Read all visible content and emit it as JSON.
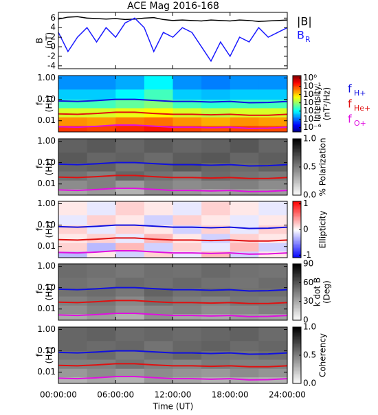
{
  "title": "ACE Mag 2016-168",
  "xaxis": {
    "xlim": [
      0,
      24
    ],
    "xticks": [
      {
        "value": 0,
        "label": "00:00:00"
      },
      {
        "value": 6,
        "label": "06:00:00"
      },
      {
        "value": 12,
        "label": "12:00:00"
      },
      {
        "value": 18,
        "label": "18:00:00"
      },
      {
        "value": 24,
        "label": "24:00:00"
      }
    ],
    "xlabel": "Time (UT)"
  },
  "gyrofrequencies": {
    "x": [
      0,
      2,
      4,
      6,
      8,
      10,
      12,
      14,
      16,
      18,
      20,
      22,
      24
    ],
    "series": [
      {
        "symbol": "f",
        "subscript": "H+",
        "color": "#1010e0",
        "values": [
          0.085,
          0.08,
          0.088,
          0.1,
          0.1,
          0.09,
          0.08,
          0.08,
          0.075,
          0.08,
          0.07,
          0.072,
          0.08
        ]
      },
      {
        "symbol": "f",
        "subscript": "He+",
        "color": "#e01010",
        "values": [
          0.021,
          0.02,
          0.022,
          0.025,
          0.025,
          0.022,
          0.02,
          0.02,
          0.019,
          0.02,
          0.018,
          0.018,
          0.02
        ]
      },
      {
        "symbol": "f",
        "subscript": "O+",
        "color": "#e010e0",
        "values": [
          0.0053,
          0.005,
          0.0055,
          0.0063,
          0.0063,
          0.0056,
          0.005,
          0.005,
          0.0047,
          0.005,
          0.0044,
          0.0045,
          0.005
        ]
      }
    ]
  },
  "chart_data": [
    {
      "type": "line",
      "ylabel": [
        "B",
        "(nT)"
      ],
      "ylim": [
        -4.6,
        7.2
      ],
      "yticks": [
        -4,
        -2,
        0,
        2,
        4,
        6
      ],
      "x": [
        0,
        1,
        2,
        3,
        4,
        5,
        6,
        7,
        8,
        9,
        10,
        11,
        12,
        13,
        14,
        15,
        16,
        17,
        18,
        19,
        20,
        21,
        22,
        23,
        24
      ],
      "series": [
        {
          "name": "|B|",
          "color": "#000000",
          "values": [
            5.8,
            6.2,
            6.3,
            6.0,
            5.9,
            5.8,
            5.9,
            5.7,
            5.8,
            6.0,
            6.1,
            5.7,
            5.5,
            5.6,
            5.5,
            5.4,
            5.6,
            5.5,
            5.4,
            5.6,
            5.5,
            5.3,
            5.4,
            5.5,
            5.6
          ]
        },
        {
          "name": "B",
          "subscript": "R",
          "color": "#1a1aff",
          "values": [
            3,
            -1,
            2,
            4,
            1,
            4,
            2,
            5,
            6,
            4,
            -1,
            3,
            2,
            4,
            3,
            0,
            -3,
            1,
            -2,
            2,
            1,
            4,
            2,
            3,
            4
          ]
        }
      ]
    },
    {
      "type": "heatmap",
      "ylabel": [
        "f",
        "(Hz)"
      ],
      "ylim": [
        0.003,
        1.3
      ],
      "ylog": true,
      "yticks": [
        {
          "value": 1,
          "label": "1.00"
        },
        {
          "value": 0.1,
          "label": "0.10"
        },
        0.01
      ],
      "tbins": [
        0,
        3,
        6,
        9,
        12,
        15,
        18,
        21,
        24
      ],
      "fbins": [
        0.003,
        0.006,
        0.015,
        0.04,
        0.1,
        0.3,
        1.3
      ],
      "cmap": "jet",
      "clog": true,
      "clim": [
        3e-07,
        2
      ],
      "clabel": [
        "Intensity",
        "(nT²/Hz)"
      ],
      "cticks": [
        {
          "value": 1,
          "label": "10⁰"
        },
        {
          "value": 0.1,
          "label": "10⁻¹"
        },
        {
          "value": 0.01,
          "label": "10⁻²"
        },
        {
          "value": 0.001,
          "label": "10⁻³"
        },
        {
          "value": 0.0001,
          "label": "10⁻⁴"
        },
        {
          "value": 1e-05,
          "label": "10⁻⁵"
        },
        {
          "value": 1e-06,
          "label": "10⁻⁶"
        }
      ],
      "z": [
        [
          0.12,
          0.1,
          0.15,
          0.2,
          0.1,
          0.08,
          0.1,
          0.09
        ],
        [
          0.03,
          0.025,
          0.04,
          0.05,
          0.03,
          0.02,
          0.03,
          0.025
        ],
        [
          0.003,
          0.003,
          0.004,
          0.006,
          0.003,
          0.002,
          0.003,
          0.003
        ],
        [
          0.0003,
          0.0003,
          0.0005,
          0.0008,
          0.0003,
          0.0002,
          0.0003,
          0.0003
        ],
        [
          5e-05,
          5e-05,
          0.0001,
          0.0003,
          5e-05,
          4e-05,
          5e-05,
          5e-05
        ],
        [
          2e-05,
          2e-05,
          3e-05,
          0.0001,
          2e-05,
          1.5e-05,
          2e-05,
          2e-05
        ]
      ]
    },
    {
      "type": "heatmap",
      "ylabel": [
        "f",
        "(Hz)"
      ],
      "ylim": [
        0.003,
        1.3
      ],
      "ylog": true,
      "yticks": [
        {
          "value": 1,
          "label": "1.00"
        },
        {
          "value": 0.1,
          "label": "0.10"
        },
        0.01
      ],
      "tbins": [
        0,
        3,
        6,
        9,
        12,
        15,
        18,
        21,
        24
      ],
      "fbins": [
        0.003,
        0.006,
        0.015,
        0.04,
        0.1,
        0.3,
        1.3
      ],
      "cmap": "gray",
      "clim": [
        0,
        1
      ],
      "clabel": [
        "% Polarization"
      ],
      "cticks": [
        {
          "value": 0,
          "label": "0.0"
        },
        {
          "value": 0.5,
          "label": "0.5"
        },
        {
          "value": 1,
          "label": "1.0"
        }
      ],
      "z": [
        [
          0.35,
          0.4,
          0.3,
          0.45,
          0.4,
          0.35,
          0.4,
          0.38
        ],
        [
          0.45,
          0.5,
          0.4,
          0.5,
          0.45,
          0.48,
          0.5,
          0.45
        ],
        [
          0.55,
          0.5,
          0.6,
          0.55,
          0.5,
          0.58,
          0.55,
          0.52
        ],
        [
          0.6,
          0.62,
          0.55,
          0.6,
          0.65,
          0.6,
          0.58,
          0.62
        ],
        [
          0.65,
          0.6,
          0.62,
          0.58,
          0.64,
          0.66,
          0.6,
          0.63
        ],
        [
          0.62,
          0.65,
          0.6,
          0.64,
          0.6,
          0.62,
          0.66,
          0.6
        ]
      ]
    },
    {
      "type": "heatmap",
      "ylabel": [
        "f",
        "(Hz)"
      ],
      "ylim": [
        0.003,
        1.3
      ],
      "ylog": true,
      "yticks": [
        {
          "value": 1,
          "label": "1.00"
        },
        {
          "value": 0.1,
          "label": "0.10"
        },
        0.01
      ],
      "tbins": [
        0,
        3,
        6,
        9,
        12,
        15,
        18,
        21,
        24
      ],
      "fbins": [
        0.003,
        0.006,
        0.015,
        0.04,
        0.1,
        0.3,
        1.3
      ],
      "cmap": "bwr",
      "clim": [
        -1.1,
        1.1
      ],
      "clabel": [
        "Ellipticity"
      ],
      "cticks": [
        -1,
        0,
        1
      ],
      "z": [
        [
          -0.3,
          0.1,
          -0.2,
          0.2,
          -0.1,
          0.3,
          -0.2,
          0.1
        ],
        [
          0.2,
          -0.3,
          0.3,
          -0.2,
          0.2,
          -0.1,
          0.3,
          -0.2
        ],
        [
          0.1,
          0.2,
          -0.1,
          0.3,
          0.1,
          -0.2,
          0.2,
          0.1
        ],
        [
          0.2,
          -0.1,
          0.2,
          0.1,
          -0.2,
          0.2,
          -0.1,
          0.2
        ],
        [
          -0.1,
          0.2,
          0.1,
          -0.2,
          0.2,
          0.1,
          -0.1,
          0.1
        ],
        [
          0.1,
          -0.1,
          0.2,
          0.1,
          -0.1,
          0.2,
          0.1,
          -0.1
        ]
      ]
    },
    {
      "type": "heatmap",
      "ylabel": [
        "f",
        "(Hz)"
      ],
      "ylim": [
        0.003,
        1.3
      ],
      "ylog": true,
      "yticks": [
        {
          "value": 1,
          "label": "1.00"
        },
        {
          "value": 0.1,
          "label": "0.10"
        },
        0.01
      ],
      "tbins": [
        0,
        3,
        6,
        9,
        12,
        15,
        18,
        21,
        24
      ],
      "fbins": [
        0.003,
        0.006,
        0.015,
        0.04,
        0.1,
        0.3,
        1.3
      ],
      "cmap": "gray",
      "clim": [
        0,
        90
      ],
      "clabel": [
        "k dot B",
        "(Deg)"
      ],
      "cticks": [
        0,
        30,
        60,
        90
      ],
      "z": [
        [
          30,
          35,
          28,
          40,
          32,
          30,
          35,
          33
        ],
        [
          40,
          45,
          38,
          42,
          44,
          40,
          42,
          45
        ],
        [
          45,
          48,
          42,
          50,
          46,
          44,
          48,
          47
        ],
        [
          50,
          52,
          48,
          55,
          50,
          52,
          50,
          51
        ],
        [
          50,
          48,
          52,
          50,
          53,
          50,
          49,
          52
        ],
        [
          52,
          50,
          48,
          51,
          50,
          53,
          50,
          49
        ]
      ]
    },
    {
      "type": "heatmap",
      "ylabel": [
        "f",
        "(Hz)"
      ],
      "ylim": [
        0.003,
        1.3
      ],
      "ylog": true,
      "yticks": [
        {
          "value": 1,
          "label": "1.00"
        },
        {
          "value": 0.1,
          "label": "0.10"
        },
        0.01
      ],
      "tbins": [
        0,
        3,
        6,
        9,
        12,
        15,
        18,
        21,
        24
      ],
      "fbins": [
        0.003,
        0.006,
        0.015,
        0.04,
        0.1,
        0.3,
        1.3
      ],
      "cmap": "gray",
      "clim": [
        0,
        1
      ],
      "clabel": [
        "Coherency"
      ],
      "cticks": [
        {
          "value": 0,
          "label": "0.0"
        },
        {
          "value": 0.5,
          "label": "0.5"
        },
        {
          "value": 1,
          "label": "1.0"
        }
      ],
      "z": [
        [
          0.3,
          0.35,
          0.3,
          0.4,
          0.35,
          0.3,
          0.32,
          0.3
        ],
        [
          0.4,
          0.45,
          0.4,
          0.45,
          0.42,
          0.4,
          0.45,
          0.42
        ],
        [
          0.5,
          0.5,
          0.55,
          0.5,
          0.48,
          0.52,
          0.5,
          0.5
        ],
        [
          0.55,
          0.58,
          0.52,
          0.56,
          0.6,
          0.55,
          0.54,
          0.57
        ],
        [
          0.6,
          0.58,
          0.6,
          0.55,
          0.6,
          0.62,
          0.58,
          0.6
        ],
        [
          0.6,
          0.62,
          0.58,
          0.6,
          0.58,
          0.6,
          0.62,
          0.58
        ]
      ]
    }
  ]
}
